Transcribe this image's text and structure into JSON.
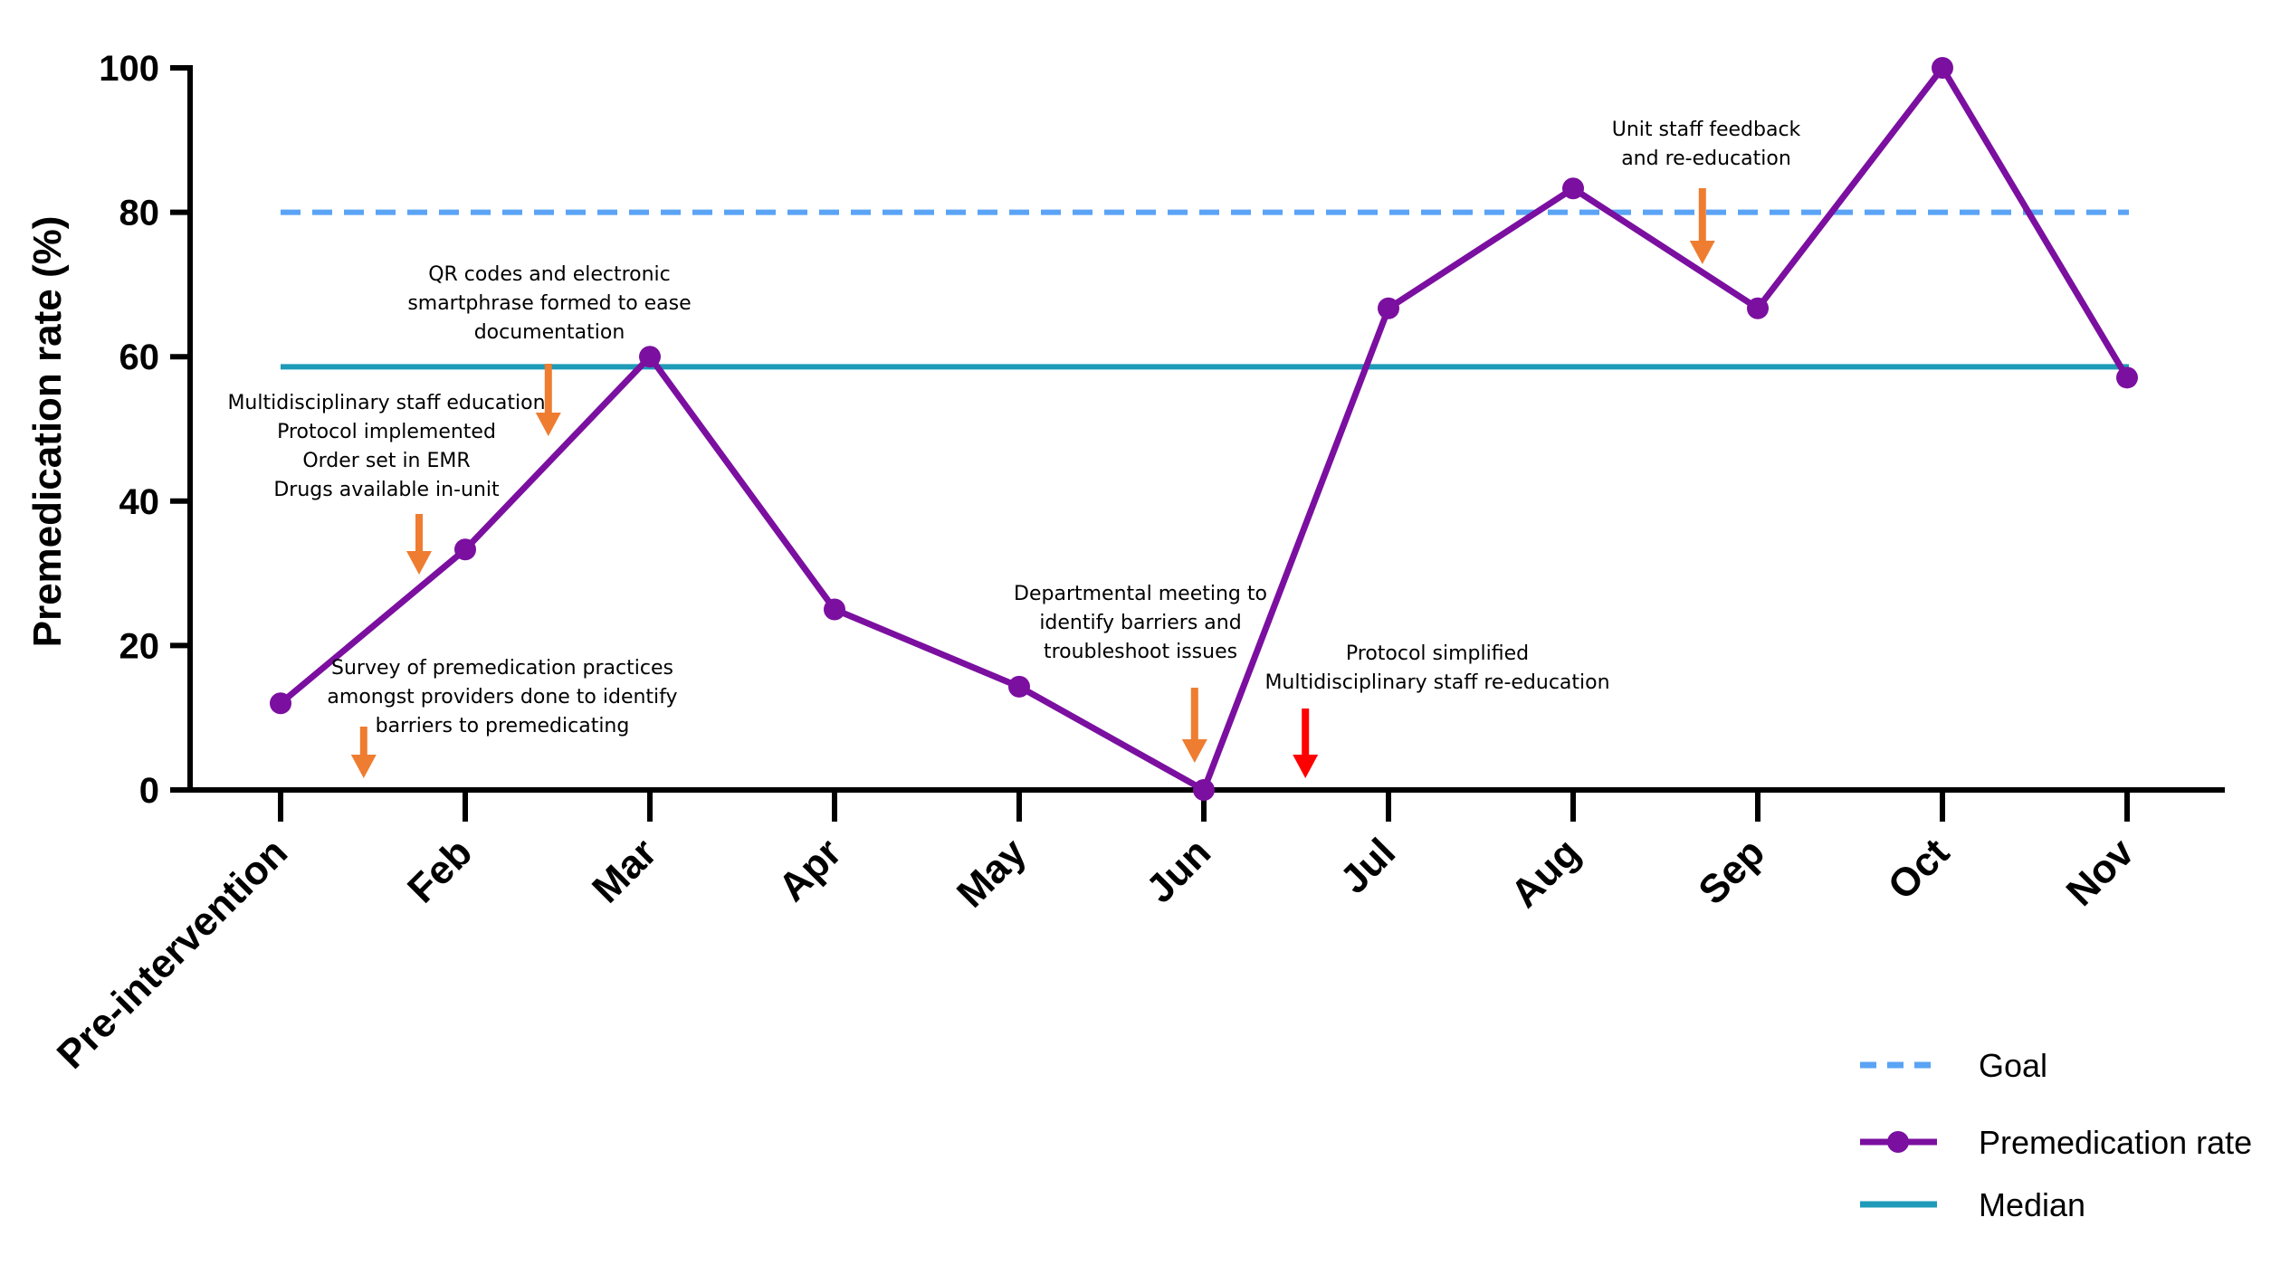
{
  "chart_data": {
    "type": "line",
    "title": "",
    "ylabel": "Premedication rate (%)",
    "xlabel": "",
    "ylim": [
      0,
      100
    ],
    "yticks": [
      0,
      20,
      40,
      60,
      80,
      100
    ],
    "categories": [
      "Pre-intervention",
      "Feb",
      "Mar",
      "Apr",
      "May",
      "Jun",
      "Jul",
      "Aug",
      "Sep",
      "Oct",
      "Nov"
    ],
    "series": [
      {
        "name": "Premedication rate",
        "color": "#7b0fa0",
        "values": [
          12,
          33.3,
          60,
          25,
          14.3,
          0,
          66.7,
          83.3,
          66.7,
          100,
          57.1
        ]
      }
    ],
    "reference_lines": [
      {
        "name": "Goal",
        "value": 80,
        "color": "#5aa3f5",
        "style": "dashed"
      },
      {
        "name": "Median",
        "value": 58.6,
        "color": "#1e9bb8",
        "style": "solid"
      }
    ],
    "legend": {
      "placement": "bottom-right",
      "entries": [
        "Goal",
        "Premedication rate",
        "Median"
      ]
    },
    "annotations": [
      {
        "id": "survey",
        "lines": [
          "Survey of premedication practices",
          "amongst providers done to identify",
          "barriers to premedicating"
        ],
        "after_index": 0.45,
        "arrow_color": "#ee7d31"
      },
      {
        "id": "education",
        "lines": [
          "Multidisciplinary staff education",
          "Protocol implemented",
          "Order set in EMR",
          "Drugs available in-unit"
        ],
        "after_index": 0.75,
        "arrow_color": "#ee7d31"
      },
      {
        "id": "qr",
        "lines": [
          "QR codes and electronic",
          "smartphrase formed to ease",
          "documentation"
        ],
        "after_index": 1.45,
        "arrow_color": "#ee7d31"
      },
      {
        "id": "dept",
        "lines": [
          "Departmental meeting to",
          "identify barriers and",
          "troubleshoot issues"
        ],
        "after_index": 4.95,
        "arrow_color": "#ee7d31"
      },
      {
        "id": "simplified",
        "lines": [
          "Protocol simplified",
          "Multidisciplinary staff re-education"
        ],
        "after_index": 5.55,
        "arrow_color": "#ff0000"
      },
      {
        "id": "feedback",
        "lines": [
          "Unit staff feedback",
          "and re-education"
        ],
        "after_index": 7.7,
        "arrow_color": "#ee7d31"
      }
    ]
  }
}
